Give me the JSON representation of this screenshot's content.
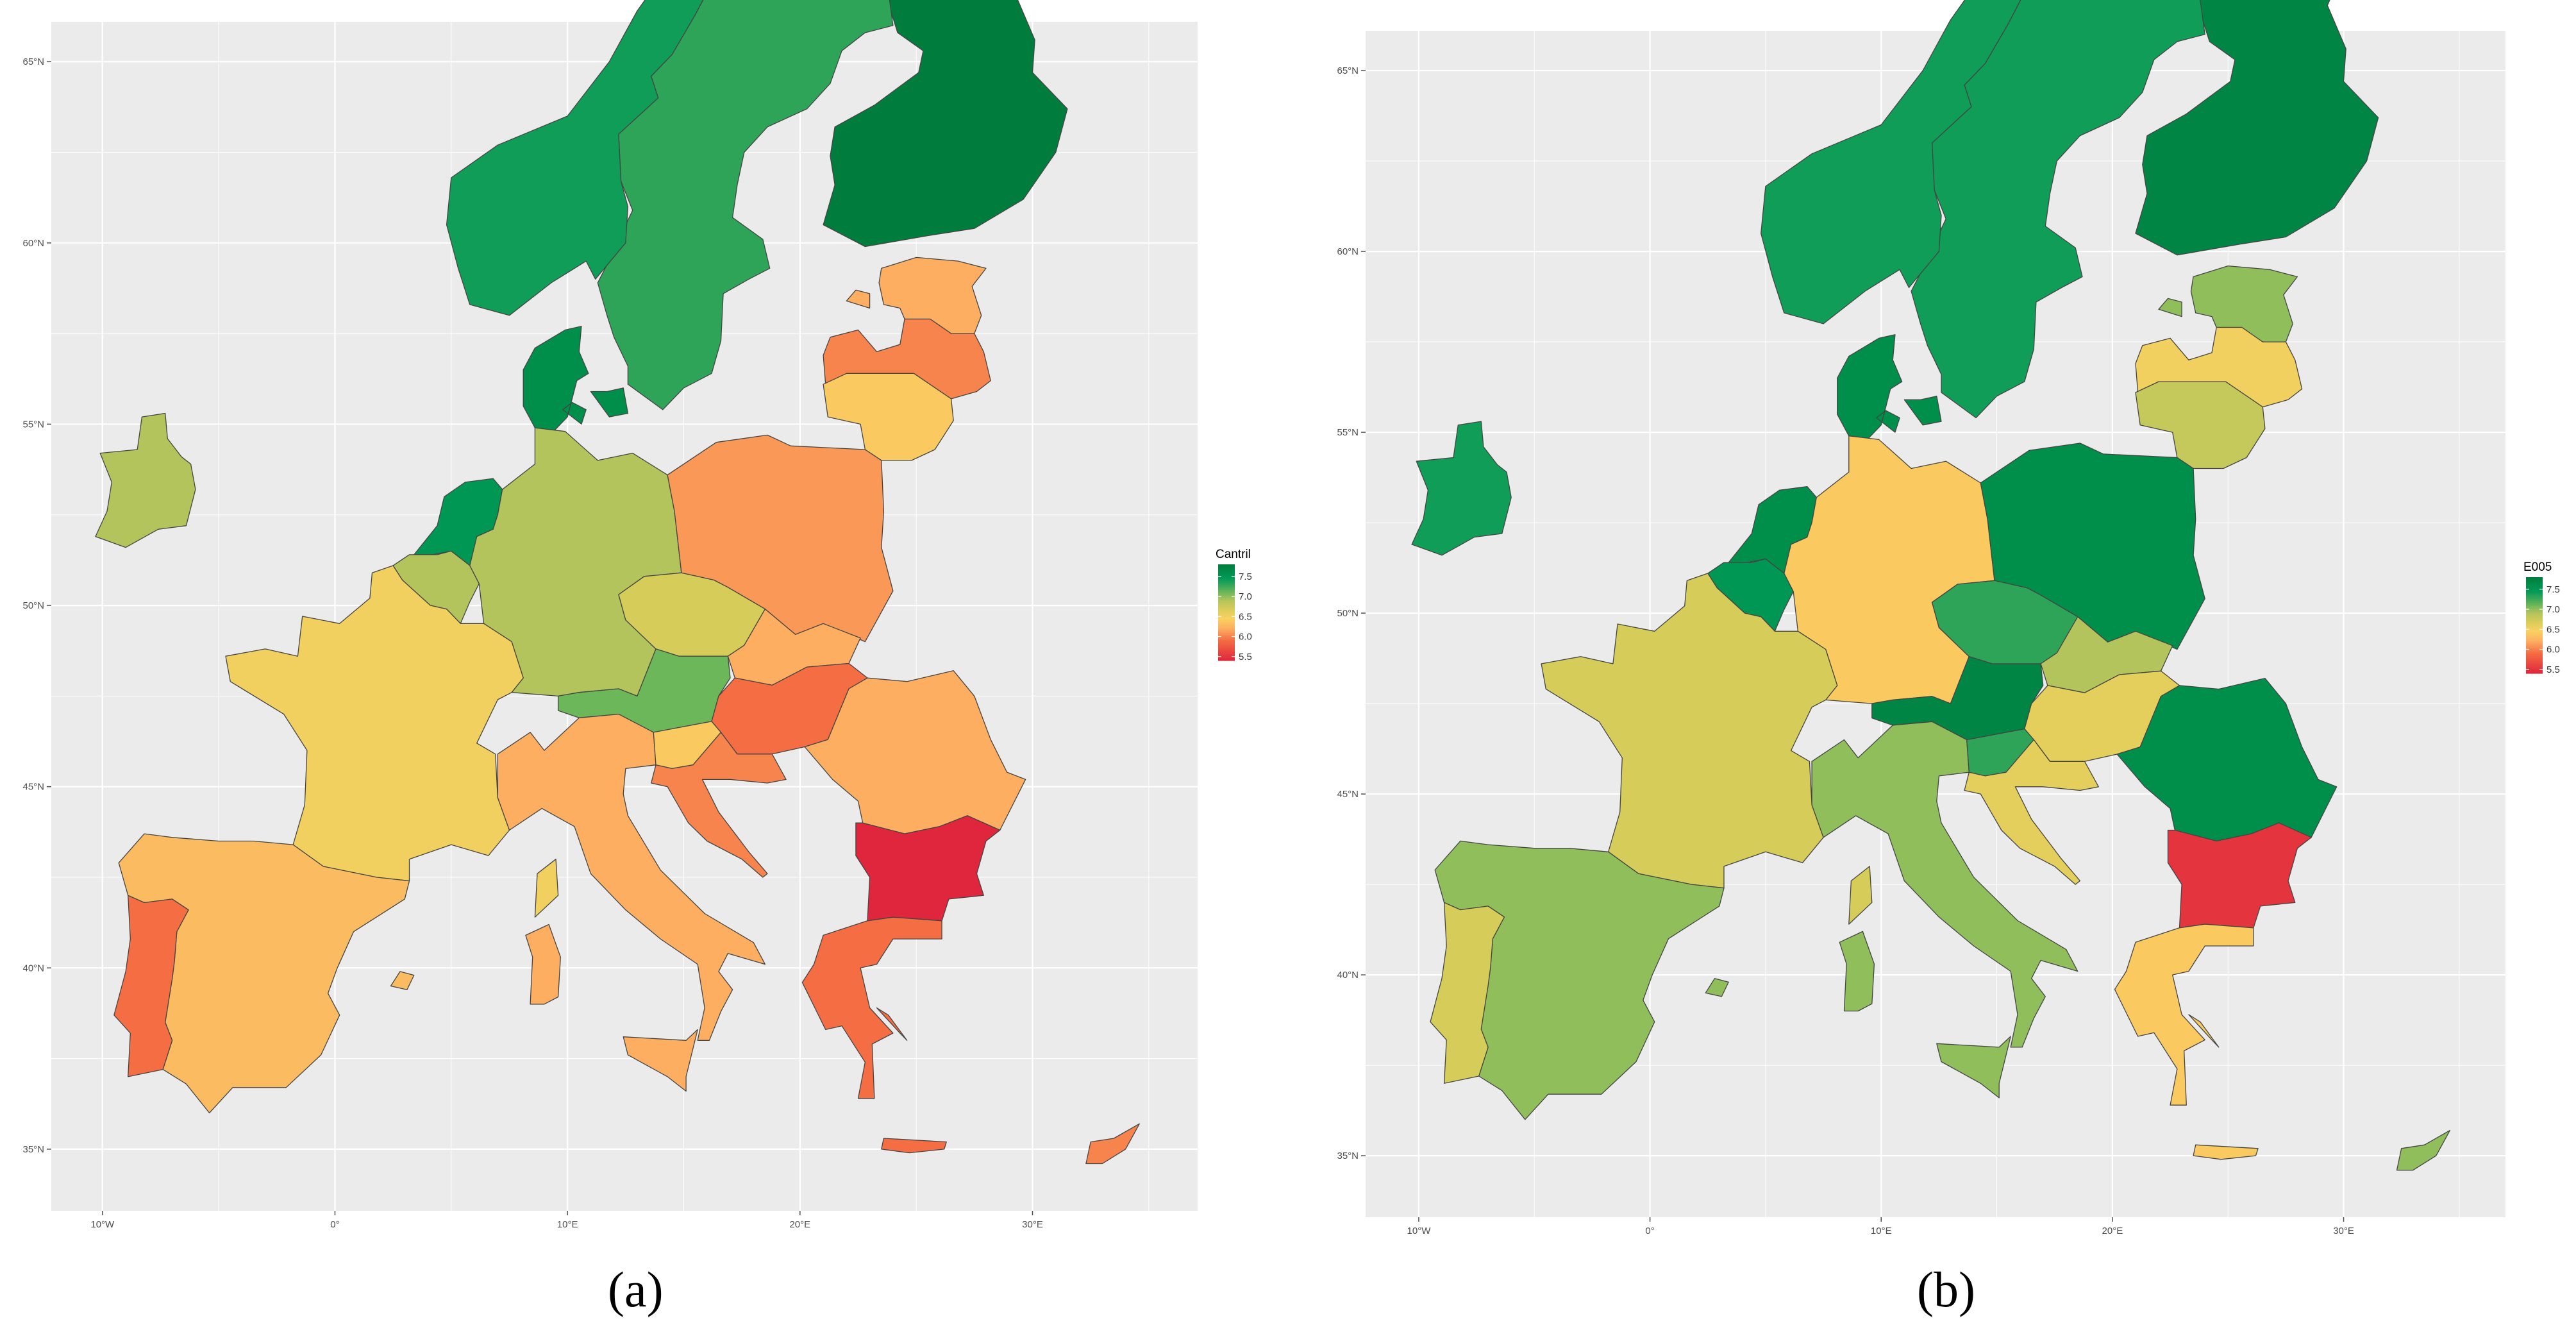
{
  "colors": {
    "panel_bg": "#ebebeb",
    "grid": "#ffffff",
    "border": "#555555",
    "scale": [
      "#e0263c",
      "#f46d43",
      "#fdae61",
      "#f9d160",
      "#d9cc5a",
      "#b3c45c",
      "#6cb75a",
      "#2ea458",
      "#009a57",
      "#007d3c"
    ]
  },
  "panels": [
    {
      "label": "(a)",
      "legend_title": "Cantril",
      "legend_ticks": [
        "7.5",
        "7.0",
        "6.5",
        "6.0",
        "5.5"
      ],
      "x_ticks": [
        "10°W",
        "0°",
        "10°E",
        "20°E",
        "30°E"
      ],
      "y_ticks": [
        "65°N",
        "60°N",
        "55°N",
        "50°N",
        "45°N",
        "40°N",
        "35°N"
      ],
      "countries": [
        {
          "name": "Finland",
          "value": 7.8
        },
        {
          "name": "Sweden",
          "value": 7.3
        },
        {
          "name": "Norway",
          "value": 7.4
        },
        {
          "name": "Denmark",
          "value": 7.6
        },
        {
          "name": "Estonia",
          "value": 6.2
        },
        {
          "name": "Latvia",
          "value": 6.0
        },
        {
          "name": "Lithuania",
          "value": 6.4
        },
        {
          "name": "Ireland",
          "value": 6.9
        },
        {
          "name": "Netherlands",
          "value": 7.5
        },
        {
          "name": "Belgium",
          "value": 6.9
        },
        {
          "name": "Germany",
          "value": 6.9
        },
        {
          "name": "Poland",
          "value": 6.1
        },
        {
          "name": "Czechia",
          "value": 6.7
        },
        {
          "name": "Slovakia",
          "value": 6.2
        },
        {
          "name": "Austria",
          "value": 7.1
        },
        {
          "name": "Hungary",
          "value": 5.9
        },
        {
          "name": "Romania",
          "value": 6.2
        },
        {
          "name": "Bulgaria",
          "value": 5.3
        },
        {
          "name": "France",
          "value": 6.5
        },
        {
          "name": "Italy",
          "value": 6.2
        },
        {
          "name": "Slovenia",
          "value": 6.4
        },
        {
          "name": "Croatia",
          "value": 6.0
        },
        {
          "name": "Spain",
          "value": 6.3
        },
        {
          "name": "Portugal",
          "value": 5.9
        },
        {
          "name": "Greece",
          "value": 5.9
        },
        {
          "name": "Cyprus",
          "value": 6.0
        }
      ]
    },
    {
      "label": "(b)",
      "legend_title": "E005",
      "legend_ticks": [
        "7.5",
        "7.0",
        "6.5",
        "6.0",
        "5.5"
      ],
      "x_ticks": [
        "10°W",
        "0°",
        "10°E",
        "20°E",
        "30°E"
      ],
      "y_ticks": [
        "65°N",
        "60°N",
        "55°N",
        "50°N",
        "45°N",
        "40°N",
        "35°N"
      ],
      "countries": [
        {
          "name": "Finland",
          "value": 7.7
        },
        {
          "name": "Sweden",
          "value": 7.4
        },
        {
          "name": "Norway",
          "value": 7.4
        },
        {
          "name": "Denmark",
          "value": 7.6
        },
        {
          "name": "Estonia",
          "value": 7.0
        },
        {
          "name": "Latvia",
          "value": 6.5
        },
        {
          "name": "Lithuania",
          "value": 6.8
        },
        {
          "name": "Ireland",
          "value": 7.4
        },
        {
          "name": "Netherlands",
          "value": 7.6
        },
        {
          "name": "Belgium",
          "value": 7.5
        },
        {
          "name": "Germany",
          "value": 6.4
        },
        {
          "name": "Poland",
          "value": 7.6
        },
        {
          "name": "Czechia",
          "value": 7.3
        },
        {
          "name": "Slovakia",
          "value": 6.9
        },
        {
          "name": "Austria",
          "value": 7.7
        },
        {
          "name": "Hungary",
          "value": 6.6
        },
        {
          "name": "Romania",
          "value": 7.6
        },
        {
          "name": "Bulgaria",
          "value": 5.5
        },
        {
          "name": "France",
          "value": 6.7
        },
        {
          "name": "Italy",
          "value": 7.0
        },
        {
          "name": "Slovenia",
          "value": 7.3
        },
        {
          "name": "Croatia",
          "value": 6.6
        },
        {
          "name": "Spain",
          "value": 7.0
        },
        {
          "name": "Portugal",
          "value": 6.7
        },
        {
          "name": "Greece",
          "value": 6.4
        },
        {
          "name": "Cyprus",
          "value": 7.0
        }
      ]
    }
  ]
}
